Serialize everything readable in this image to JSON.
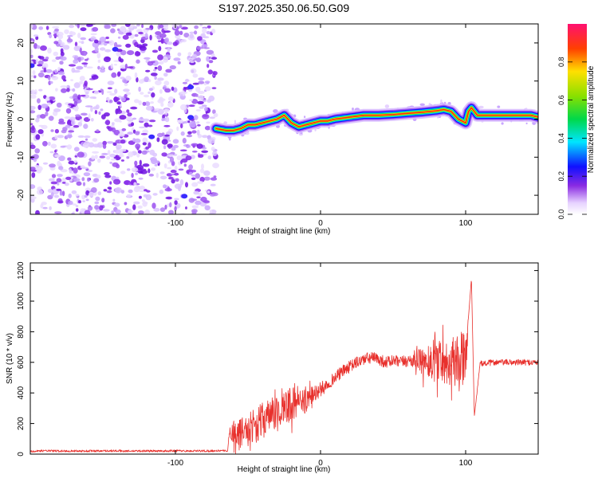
{
  "title": "S197.2025.350.06.50.G09",
  "chart_data": [
    {
      "type": "heatmap",
      "name": "spectrogram",
      "xlabel": "Height of straight line (km)",
      "ylabel": "Frequency (Hz)",
      "xlim": [
        -200,
        150
      ],
      "ylim": [
        -25,
        25
      ],
      "xticks": [
        -100,
        0,
        100
      ],
      "yticks": [
        -20,
        -10,
        0,
        10,
        20
      ],
      "noise_region_x": [
        -200,
        -72
      ],
      "ridge_x": [
        -72,
        -65,
        -60,
        -55,
        -50,
        -45,
        -40,
        -35,
        -30,
        -25,
        -20,
        -15,
        -10,
        -5,
        0,
        5,
        10,
        20,
        30,
        40,
        50,
        60,
        70,
        80,
        85,
        90,
        95,
        100,
        102,
        104,
        108,
        115,
        125,
        135,
        145,
        150
      ],
      "ridge_freq_hz": [
        -2.5,
        -3,
        -3,
        -2.5,
        -1.5,
        -1.5,
        -1,
        -0.5,
        0,
        1,
        -1,
        -2,
        -1.5,
        -1,
        -0.5,
        -0.5,
        0,
        0.5,
        1,
        1,
        1.2,
        1.5,
        1.8,
        2.2,
        2.5,
        2,
        0,
        -1,
        2,
        3,
        1,
        1,
        1,
        1,
        1,
        0.5
      ],
      "colorbar": {
        "label": "Normalized spectral amplitude",
        "range": [
          0,
          1
        ],
        "ticks": [
          "0.0",
          "0.2",
          "0.4",
          "0.6",
          "0.8"
        ]
      }
    },
    {
      "type": "line",
      "name": "snr",
      "xlabel": "Height of straight line (km)",
      "ylabel": "SNR (10 * v/v)",
      "xlim": [
        -200,
        150
      ],
      "ylim": [
        0,
        1250
      ],
      "xticks": [
        -100,
        0,
        100
      ],
      "yticks": [
        0,
        200,
        400,
        600,
        800,
        1000,
        1200
      ],
      "color": "#e8302c",
      "x": [
        -200,
        -190,
        -180,
        -170,
        -160,
        -150,
        -140,
        -130,
        -120,
        -110,
        -100,
        -90,
        -80,
        -70,
        -64,
        -63,
        -60,
        -55,
        -50,
        -45,
        -40,
        -35,
        -30,
        -25,
        -20,
        -15,
        -10,
        -5,
        0,
        5,
        10,
        15,
        20,
        25,
        30,
        35,
        40,
        45,
        50,
        55,
        60,
        65,
        70,
        75,
        80,
        85,
        90,
        95,
        100,
        102,
        104,
        106,
        110,
        120,
        130,
        140,
        150
      ],
      "y": [
        20,
        22,
        20,
        21,
        20,
        22,
        21,
        20,
        21,
        20,
        22,
        20,
        21,
        22,
        22,
        130,
        150,
        140,
        170,
        190,
        220,
        250,
        270,
        300,
        330,
        330,
        350,
        390,
        420,
        460,
        500,
        540,
        570,
        600,
        620,
        630,
        620,
        600,
        610,
        600,
        610,
        620,
        600,
        610,
        620,
        610,
        600,
        610,
        600,
        900,
        1150,
        250,
        590,
        600,
        600,
        600,
        600
      ],
      "amp": [
        8,
        6,
        8,
        6,
        8,
        6,
        8,
        6,
        8,
        6,
        8,
        6,
        8,
        6,
        6,
        30,
        80,
        100,
        90,
        110,
        120,
        110,
        120,
        110,
        120,
        80,
        80,
        60,
        50,
        40,
        40,
        40,
        40,
        40,
        40,
        40,
        40,
        40,
        40,
        40,
        40,
        60,
        90,
        140,
        150,
        150,
        150,
        200,
        200,
        0,
        0,
        0,
        20,
        20,
        20,
        20,
        20
      ]
    }
  ]
}
